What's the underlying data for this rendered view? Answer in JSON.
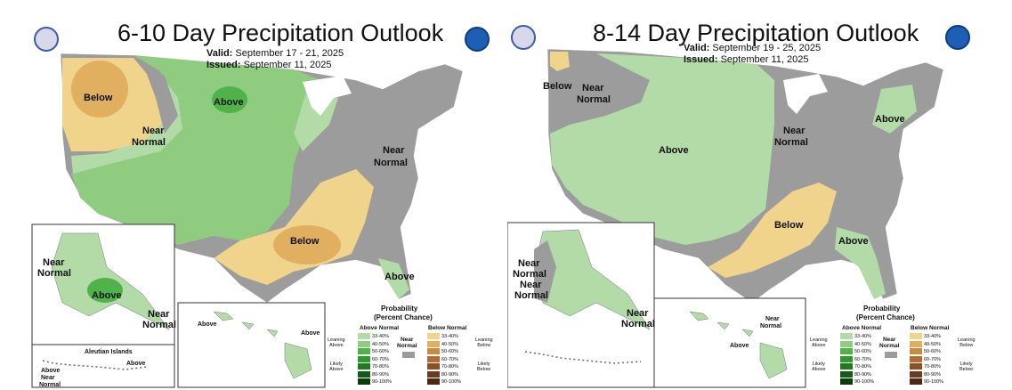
{
  "left": {
    "title": "6-10 Day Precipitation Outlook",
    "valid_label": "Valid:",
    "valid_value": "September 17 - 21, 2025",
    "issued_label": "Issued:",
    "issued_value": "September 11, 2025",
    "labels": {
      "below_nw": "Below",
      "near_normal_w": "Near",
      "near_normal_w2": "Normal",
      "above_nd": "Above",
      "near_normal_e": "Near",
      "near_normal_e2": "Normal",
      "below_south": "Below",
      "above_fl": "Above",
      "ak_near1": "Near",
      "ak_near2": "Normal",
      "ak_above": "Above",
      "ak_near_se1": "Near",
      "ak_near_se2": "Normal",
      "hi_above1": "Above",
      "hi_above2": "Above",
      "aleutian_title": "Aleutian Islands",
      "aleutian_above1": "Above",
      "aleutian_above2": "Above",
      "aleutian_near1": "Near",
      "aleutian_near2": "Normal"
    }
  },
  "right": {
    "title": "8-14 Day Precipitation Outlook",
    "valid_label": "Valid:",
    "valid_value": "September 19 - 25, 2025",
    "issued_label": "Issued:",
    "issued_value": "September 11, 2025",
    "labels": {
      "below_nw": "Below",
      "near_normal_nw": "Near",
      "near_normal_nw2": "Normal",
      "above_c": "Above",
      "near_normal_c": "Near",
      "near_normal_c2": "Normal",
      "above_ne": "Above",
      "below_south": "Below",
      "above_se": "Above",
      "ak_near1": "Near",
      "ak_near2": "Normal",
      "ak_near3": "Near",
      "ak_near4": "Normal",
      "ak_near_se1": "Near",
      "ak_near_se2": "Normal",
      "hi_near1": "Near",
      "hi_near2": "Normal",
      "hi_above": "Above"
    }
  },
  "legend": {
    "title_line1": "Probability",
    "title_line2": "(Percent Chance)",
    "above_head": "Above Normal",
    "below_head": "Below Normal",
    "near_head1": "Near",
    "near_head2": "Normal",
    "leaning_above1": "Leaning",
    "leaning_above2": "Above",
    "likely_above1": "Likely",
    "likely_above2": "Above",
    "leaning_below1": "Leaning",
    "leaning_below2": "Below",
    "likely_below1": "Likely",
    "likely_below2": "Below",
    "ranges": [
      "33-40%",
      "40-50%",
      "50-60%",
      "60-70%",
      "70-80%",
      "80-90%",
      "90-100%"
    ],
    "above_colors": [
      "#b3dba8",
      "#8fcc7f",
      "#4fb34a",
      "#2e9a2e",
      "#217a21",
      "#145c14",
      "#0a3d0a"
    ],
    "below_colors": [
      "#f1d48c",
      "#e0b060",
      "#c88c3e",
      "#b06d34",
      "#8c4f28",
      "#6e3a1e",
      "#4f2814"
    ],
    "near_color": "#9c9c9c"
  },
  "colors": {
    "near_normal": "#9c9c9c",
    "above_lean": "#b3dba8",
    "above_40": "#8fcc7f",
    "above_50": "#4fb34a",
    "below_lean": "#f1d48c",
    "below_40": "#e0b060",
    "water": "#ffffff"
  }
}
